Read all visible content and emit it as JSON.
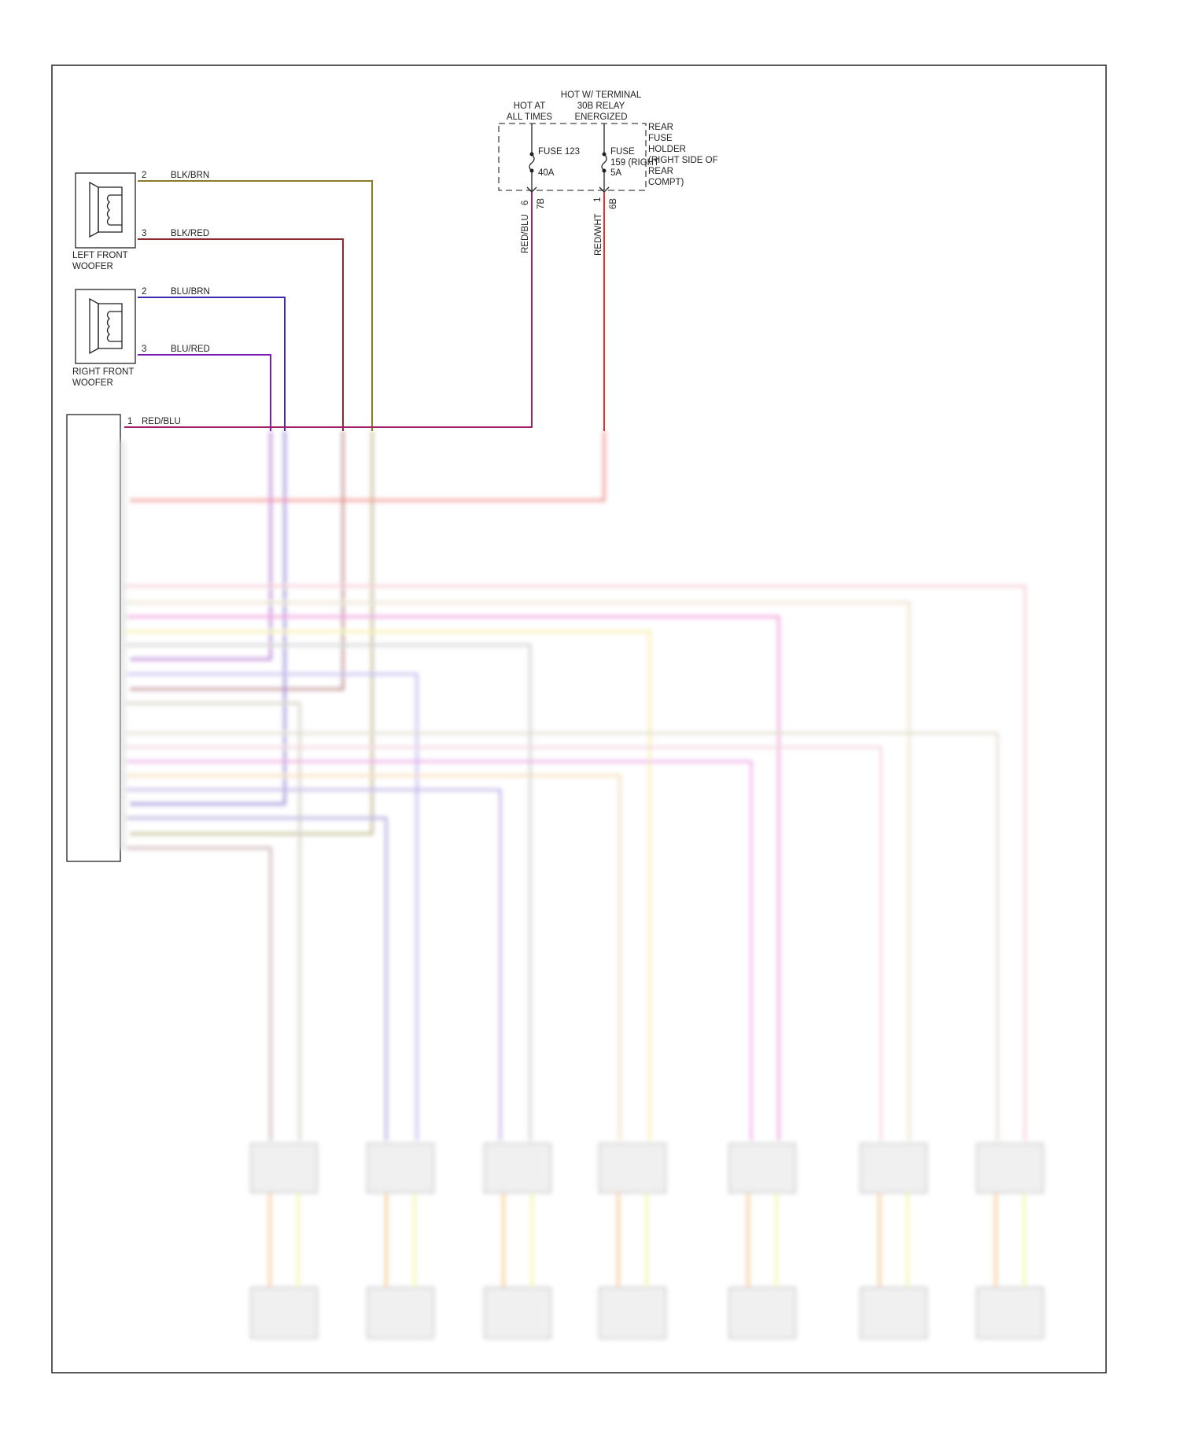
{
  "power": {
    "hot_at_all_times": [
      "HOT AT",
      "ALL TIMES"
    ],
    "hot_w_terminal": [
      "HOT W/ TERMINAL",
      "30B RELAY",
      "ENERGIZED"
    ],
    "fuse_holder": [
      "REAR",
      "FUSE",
      "HOLDER",
      "(RIGHT SIDE OF",
      "REAR",
      "COMPT)"
    ],
    "fuse_a": {
      "name": "FUSE 123",
      "rating": "40A",
      "pin_left": "6",
      "pin_right": "7B",
      "wire": "RED/BLU"
    },
    "fuse_b": {
      "name": "FUSE",
      "name2": "159 (RIGHT",
      "rating": "5A",
      "pin_left": "1",
      "pin_right": "6B",
      "wire": "RED/WHT"
    }
  },
  "left_woofer": {
    "label": [
      "LEFT FRONT",
      "WOOFER"
    ],
    "pins": [
      {
        "pin": "2",
        "wire": "BLK/BRN"
      },
      {
        "pin": "3",
        "wire": "BLK/RED"
      }
    ]
  },
  "right_woofer": {
    "label": [
      "RIGHT FRONT",
      "WOOFER"
    ],
    "pins": [
      {
        "pin": "2",
        "wire": "BLU/BRN"
      },
      {
        "pin": "3",
        "wire": "BLU/RED"
      }
    ]
  },
  "amplifier": {
    "pin": "1",
    "wire": "RED/BLU"
  },
  "colors": {
    "blk_brn": "#8a7a2a",
    "blk_red": "#8b2a2a",
    "blu_brn": "#3a2ab0",
    "blu_red": "#7a1ab0",
    "red_blu": "#a0206a",
    "red_wht": "#e03030"
  }
}
